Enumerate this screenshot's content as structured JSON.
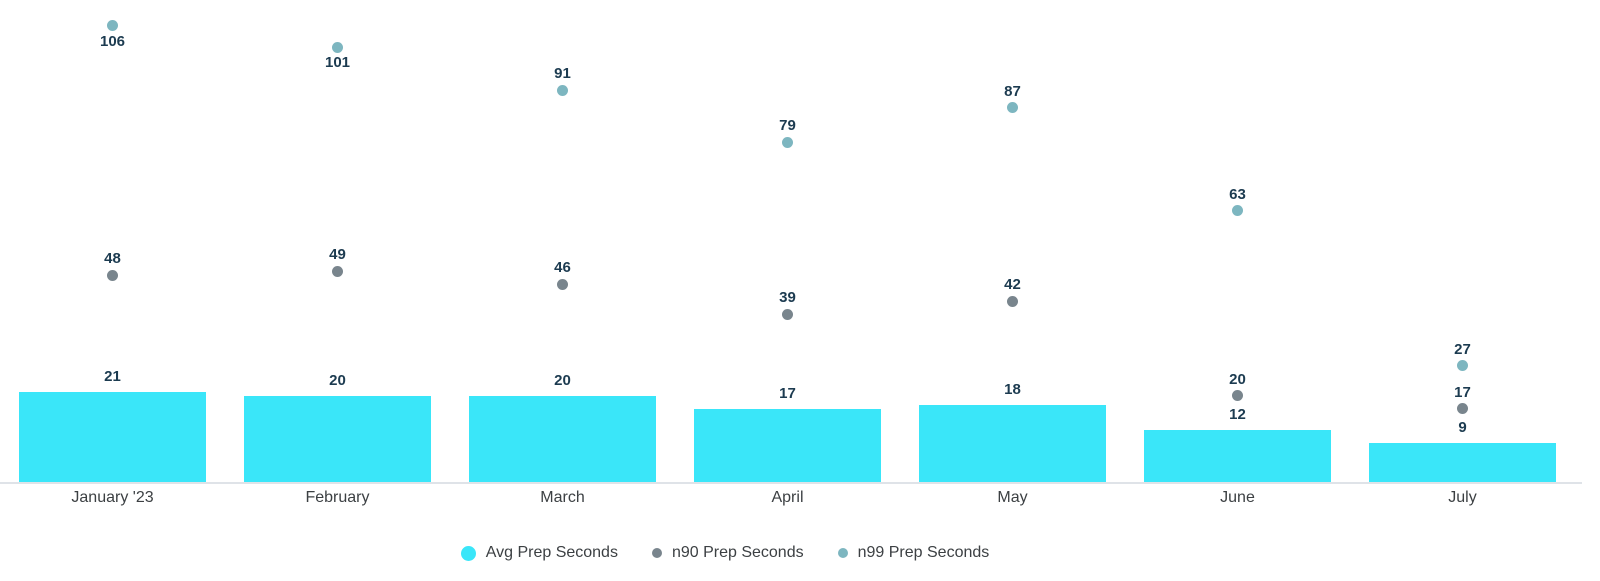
{
  "chart_data": {
    "type": "bar",
    "categories": [
      "January '23",
      "February",
      "March",
      "April",
      "May",
      "June",
      "July"
    ],
    "series": [
      {
        "name": "Avg Prep Seconds",
        "render": "bar",
        "color": "#3ae6f9",
        "values": [
          21,
          20,
          20,
          17,
          18,
          12,
          9
        ]
      },
      {
        "name": "n90 Prep Seconds",
        "render": "point",
        "color": "#79858d",
        "values": [
          48,
          49,
          46,
          39,
          42,
          20,
          17
        ]
      },
      {
        "name": "n99 Prep Seconds",
        "render": "point",
        "color": "#7db6c0",
        "values": [
          106,
          101,
          91,
          79,
          87,
          63,
          27
        ]
      }
    ],
    "title": "",
    "xlabel": "",
    "ylabel": "",
    "ylim": [
      0,
      112
    ],
    "grid": false,
    "value_labels": true,
    "n99_label_below_indices": [
      0,
      1
    ],
    "legend_position": "bottom",
    "colors": {
      "value_label": "#1c3b50",
      "tick_label": "#3c4043",
      "axis_line": "#dfe3e8",
      "background": "#ffffff"
    }
  }
}
